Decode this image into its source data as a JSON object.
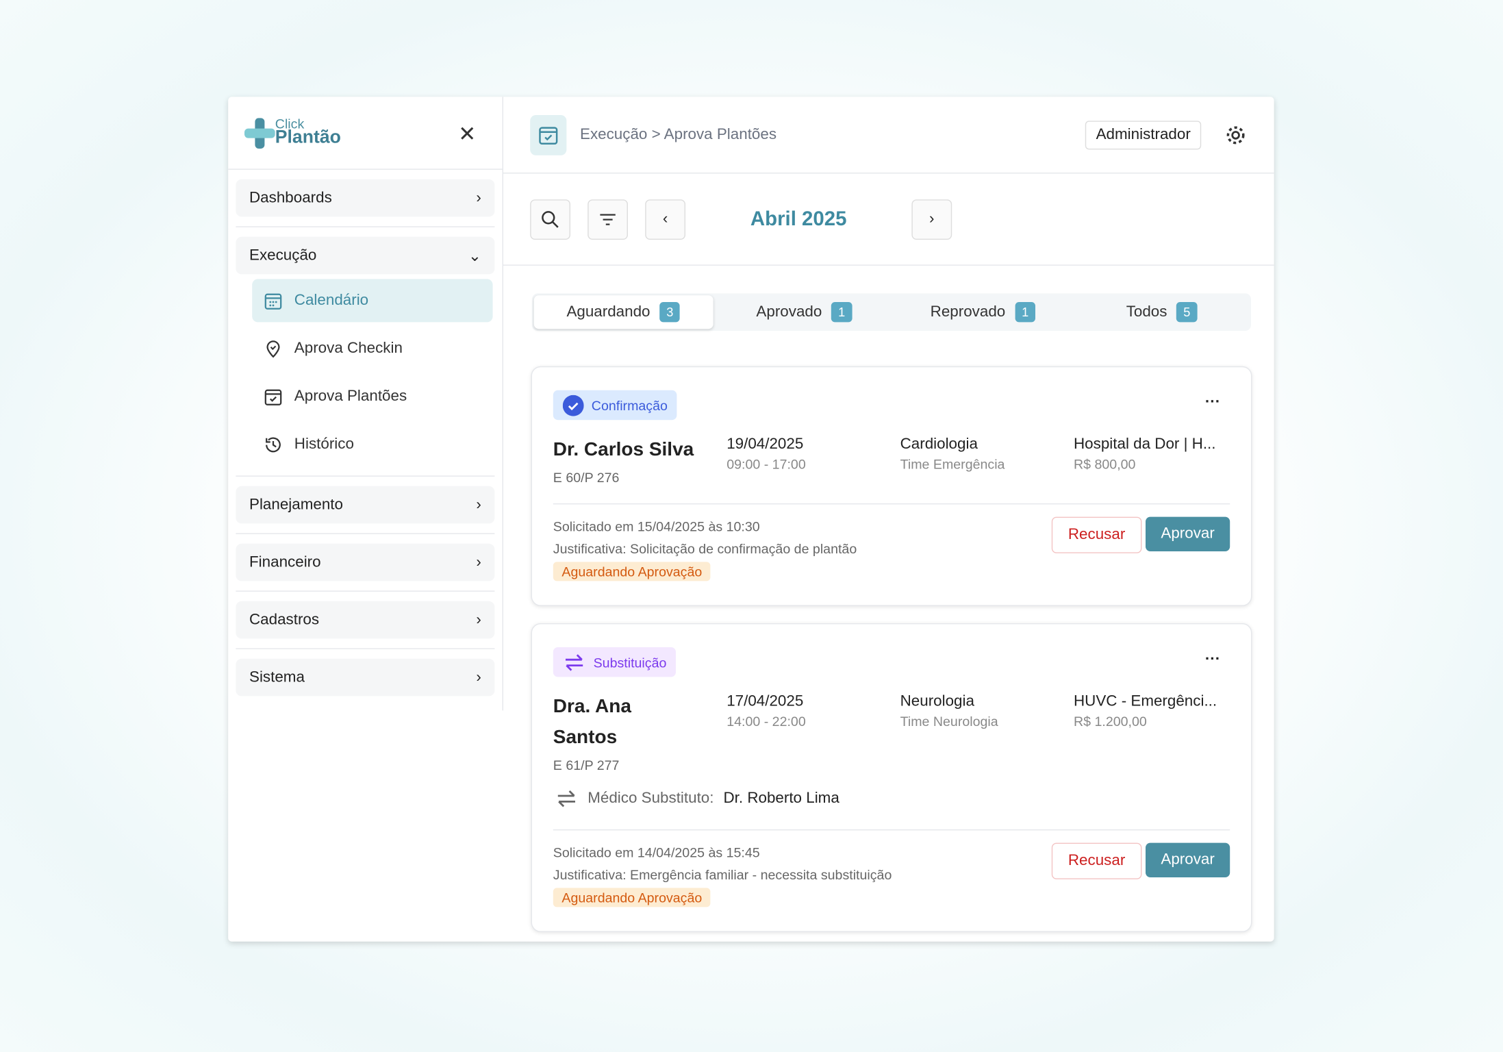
{
  "app": {
    "logo_top": "Click",
    "logo_bottom": "Plantão"
  },
  "sidebar": {
    "sections": [
      {
        "label": "Dashboards"
      },
      {
        "label": "Execução"
      },
      {
        "label": "Planejamento"
      },
      {
        "label": "Financeiro"
      },
      {
        "label": "Cadastros"
      },
      {
        "label": "Sistema"
      }
    ],
    "subitems": [
      {
        "label": "Calendário",
        "icon": "calendar-icon",
        "active": true
      },
      {
        "label": "Aprova Checkin",
        "icon": "location-pin-icon"
      },
      {
        "label": "Aprova Plantões",
        "icon": "calendar-check-icon"
      },
      {
        "label": "Histórico",
        "icon": "history-icon"
      }
    ]
  },
  "header": {
    "breadcrumb": "Execução > Aprova Plantões",
    "user": "Administrador"
  },
  "toolbar": {
    "month": "Abril 2025"
  },
  "tabs": [
    {
      "label": "Aguardando",
      "count": "3"
    },
    {
      "label": "Aprovado",
      "count": "1"
    },
    {
      "label": "Reprovado",
      "count": "1"
    },
    {
      "label": "Todos",
      "count": "5"
    }
  ],
  "cards": [
    {
      "type": "Confirmação",
      "name": "Dr. Carlos Silva",
      "code": "E 60/P 276",
      "date": "19/04/2025",
      "time": "09:00 - 17:00",
      "specialty": "Cardiologia",
      "team": "Time Emergência",
      "hospital": "Hospital da Dor | H...",
      "value": "R$ 800,00",
      "requested": "Solicitado em 15/04/2025 às 10:30",
      "justification": "Justificativa: Solicitação de confirmação de plantão",
      "status": "Aguardando Aprovação",
      "reject": "Recusar",
      "approve": "Aprovar"
    },
    {
      "type": "Substituição",
      "name": "Dra. Ana Santos",
      "code": "E 61/P 277",
      "date": "17/04/2025",
      "time": "14:00 - 22:00",
      "specialty": "Neurologia",
      "team": "Time Neurologia",
      "hospital": "HUVC - Emergênci...",
      "value": "R$ 1.200,00",
      "substitute_label": "Médico Substituto:",
      "substitute": "Dr. Roberto Lima",
      "requested": "Solicitado em 14/04/2025 às 15:45",
      "justification": "Justificativa: Emergência familiar - necessita substituição",
      "status": "Aguardando Aprovação",
      "reject": "Recusar",
      "approve": "Aprovar"
    }
  ],
  "colors": {
    "accent": "#3e8aa0",
    "approve": "#4a8fa2",
    "reject": "#cc1f1f",
    "pending_bg": "#fdecd2",
    "pending_text": "#d45a10",
    "confirm_bg": "#dbeafe",
    "confirm": "#3b5bdb",
    "subst_bg": "#f3e8ff",
    "subst": "#7c3aed"
  }
}
